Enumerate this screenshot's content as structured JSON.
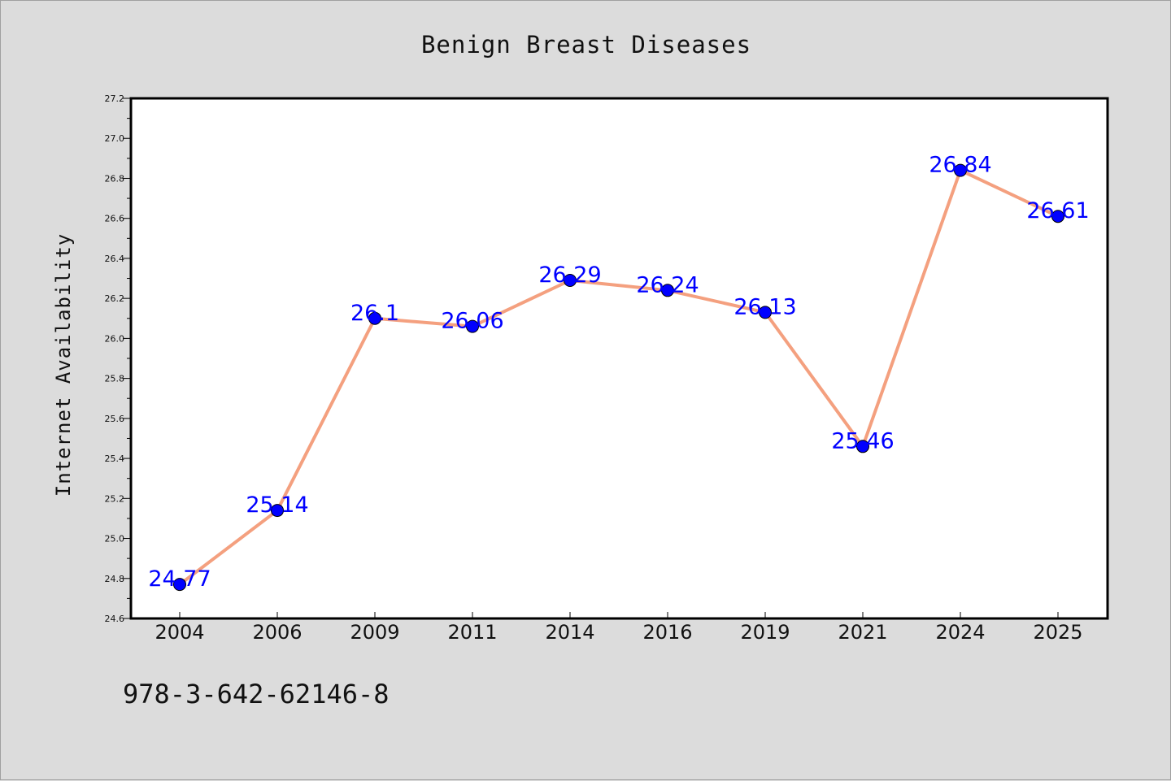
{
  "chart_data": {
    "type": "line",
    "title": "Benign Breast Diseases",
    "xlabel": "",
    "ylabel": "Internet Availability",
    "categories": [
      "2004",
      "2006",
      "2009",
      "2011",
      "2014",
      "2016",
      "2019",
      "2021",
      "2024",
      "2025"
    ],
    "values": [
      24.77,
      25.14,
      26.1,
      26.06,
      26.29,
      26.24,
      26.13,
      25.46,
      26.84,
      26.61
    ],
    "data_labels": [
      "24.77",
      "25.14",
      "26.1",
      "26.06",
      "26.29",
      "26.24",
      "26.13",
      "25.46",
      "26.84",
      "26.61"
    ],
    "ylim": [
      24.6,
      27.2
    ],
    "yticks": [
      "24.6",
      "24.8",
      "25.0",
      "25.2",
      "25.4",
      "25.6",
      "25.8",
      "26.0",
      "26.2",
      "26.4",
      "26.6",
      "26.8",
      "27.0",
      "27.2"
    ],
    "grid": false,
    "legend": "none",
    "line_color": "#f4a07f",
    "marker_color": "#0000ff",
    "label_color": "#0000ff"
  },
  "footnote": "978-3-642-62146-8"
}
